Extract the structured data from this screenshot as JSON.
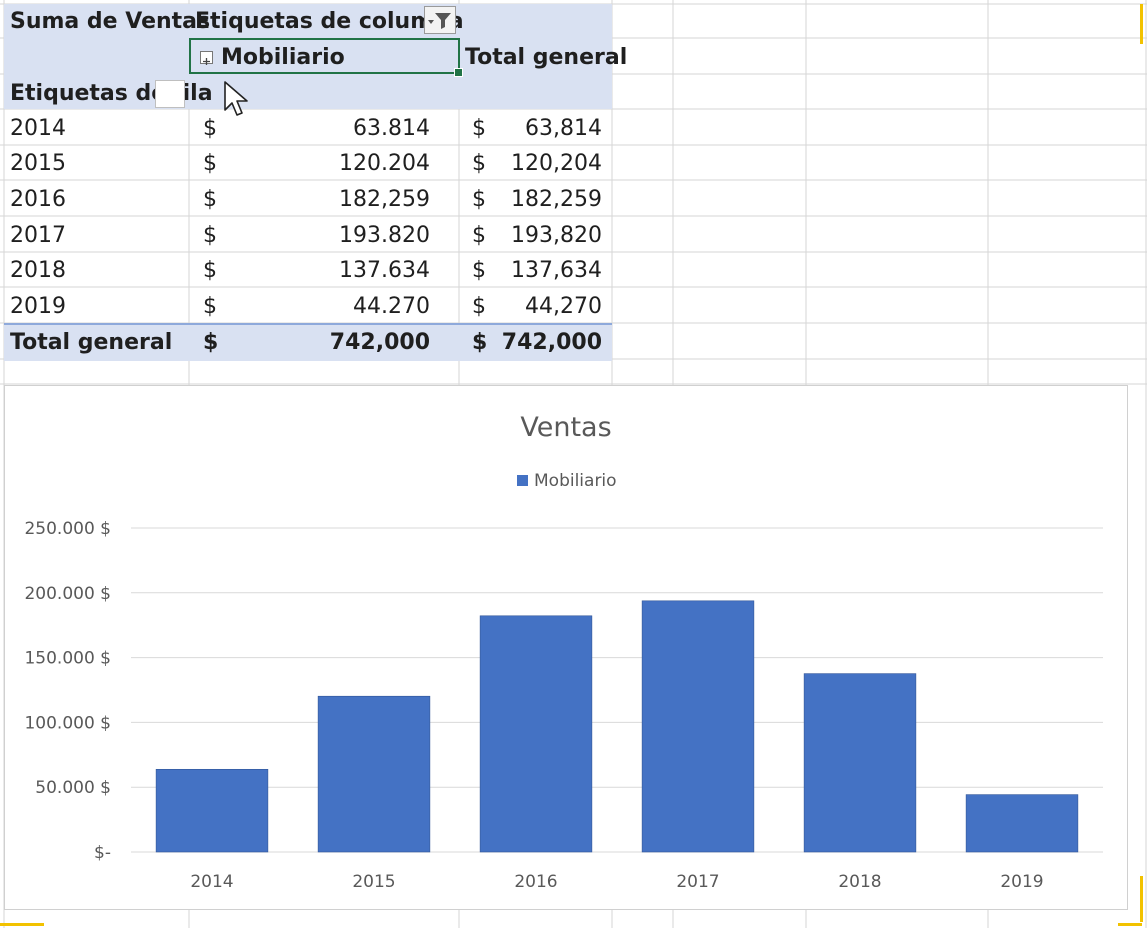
{
  "pivot": {
    "corner_label": "Suma de Ventas",
    "column_labels_header": "Etiquetas de columna",
    "row_labels_header": "Etiquetas de fila",
    "column_field": "Mobiliario",
    "total_column_header": "Total general",
    "currency_symbol": "$",
    "rows": [
      {
        "year": "2014",
        "value": "63.814",
        "total": "63,814"
      },
      {
        "year": "2015",
        "value": "120.204",
        "total": "120,204"
      },
      {
        "year": "2016",
        "value": "182,259",
        "total": "182,259"
      },
      {
        "year": "2017",
        "value": "193.820",
        "total": "193,820"
      },
      {
        "year": "2018",
        "value": "137.634",
        "total": "137,634"
      },
      {
        "year": "2019",
        "value": "44.270",
        "total": "44,270"
      }
    ],
    "grand_total": {
      "label": "Total general",
      "value": "742,000",
      "total": "742,000"
    }
  },
  "colors": {
    "bar": "#4472c4",
    "header_fill": "#d9e1f2",
    "selection": "#217346"
  },
  "chart_data": {
    "type": "bar",
    "title": "Ventas",
    "categories": [
      "2014",
      "2015",
      "2016",
      "2017",
      "2018",
      "2019"
    ],
    "series": [
      {
        "name": "Mobiliario",
        "values": [
          63814,
          120204,
          182259,
          193820,
          137634,
          44270
        ]
      }
    ],
    "ylim": [
      0,
      250000
    ],
    "yticks": [
      0,
      50000,
      100000,
      150000,
      200000,
      250000
    ],
    "ytick_labels": [
      "$-",
      "50.000 $",
      "100.000 $",
      "150.000 $",
      "200.000 $",
      "250.000 $"
    ],
    "legend_position": "top",
    "grid": true
  }
}
